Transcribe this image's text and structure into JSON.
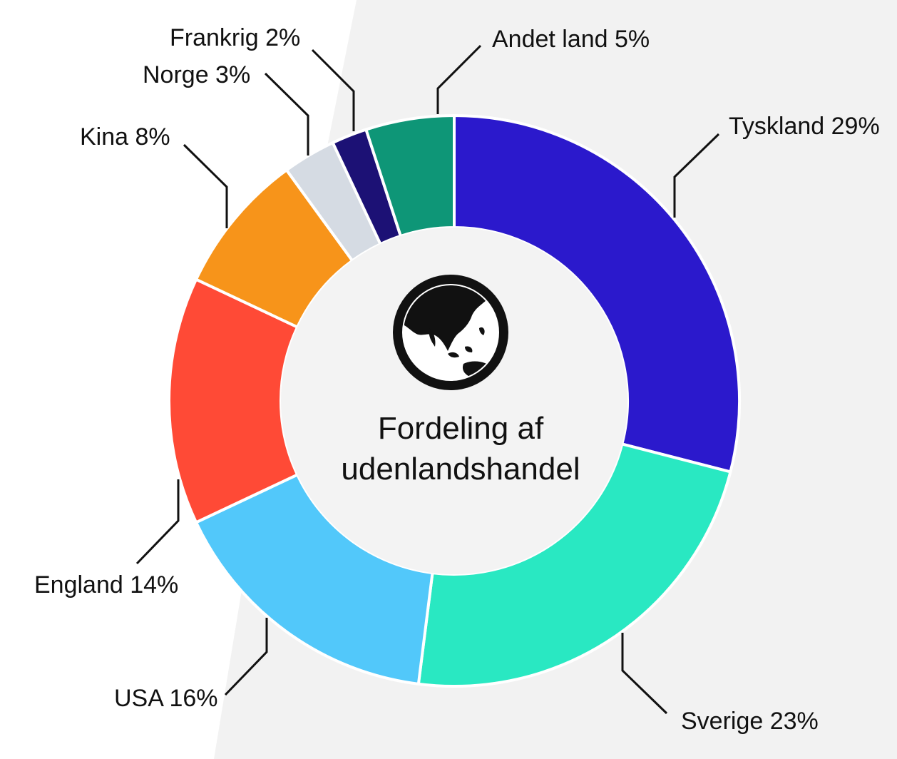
{
  "chart_data": {
    "type": "pie",
    "variant": "donut",
    "title_lines": [
      "Fordeling af",
      "udenlandshandel"
    ],
    "center_icon": "globe-icon",
    "start_angle_deg": 0,
    "direction": "clockwise",
    "slices": [
      {
        "name": "Tyskland",
        "value": 29,
        "label": "Tyskland 29%",
        "color": "#2b19cc"
      },
      {
        "name": "Sverige",
        "value": 23,
        "label": "Sverige 23%",
        "color": "#29e8c2"
      },
      {
        "name": "USA",
        "value": 16,
        "label": "USA 16%",
        "color": "#52c8fa"
      },
      {
        "name": "England",
        "value": 14,
        "label": "England 14%",
        "color": "#ff4a36"
      },
      {
        "name": "Kina",
        "value": 8,
        "label": "Kina 8%",
        "color": "#f7941a"
      },
      {
        "name": "Norge",
        "value": 3,
        "label": "Norge 3%",
        "color": "#d5dbe3"
      },
      {
        "name": "Frankrig",
        "value": 2,
        "label": "Frankrig 2%",
        "color": "#1c1175"
      },
      {
        "name": "Andet land",
        "value": 5,
        "label": "Andet land 5%",
        "color": "#0e9677"
      }
    ]
  },
  "colors": {
    "hole": "#f3f3f3",
    "background_panel": "#f2f2f2",
    "separator": "#ffffff",
    "text": "#111111"
  }
}
